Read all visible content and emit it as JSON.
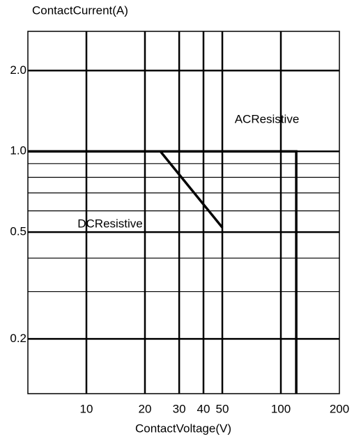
{
  "chart_data": {
    "type": "line",
    "title": "ContactCurrent(A)",
    "x_label": "ContactVoltage(V)",
    "log_x": true,
    "log_y": true,
    "grid": true,
    "xlim": [
      5,
      200
    ],
    "ylim": [
      0.125,
      2.8
    ],
    "xticks": [
      10,
      20,
      30,
      40,
      50,
      100,
      200
    ],
    "yticks": [
      {
        "value": 0.2,
        "label": "0.2"
      },
      {
        "value": 0.5,
        "label": "0.5"
      },
      {
        "value": 1,
        "label": "1.0"
      },
      {
        "value": 2,
        "label": "2.0"
      }
    ],
    "yminor": [
      0.3,
      0.4,
      0.6,
      0.7,
      0.8,
      0.9
    ],
    "series": [
      {
        "name": "ACResistive",
        "color": "#000000",
        "x": [
          5,
          120,
          120
        ],
        "values": [
          1,
          1,
          0.125
        ]
      },
      {
        "name": "DCResistive",
        "color": "#000000",
        "x": [
          24,
          50
        ],
        "values": [
          1,
          0.52
        ]
      }
    ]
  }
}
